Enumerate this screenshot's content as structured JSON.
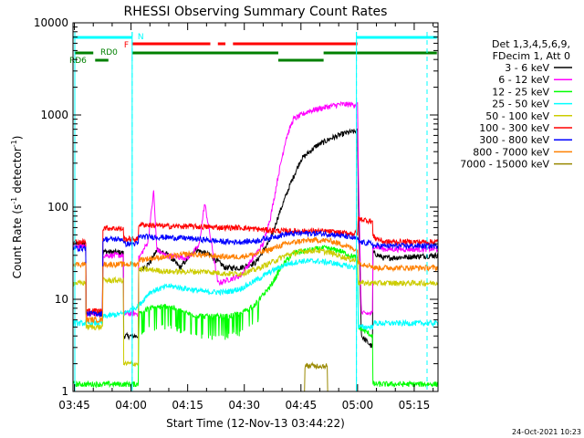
{
  "chart_data": {
    "type": "line",
    "title": "RHESSI Observing Summary Count Rates",
    "xlabel": "Start Time (12-Nov-13 03:44:22)",
    "ylabel_main": "Count Rate (s",
    "ylabel_sup1": "-1",
    "ylabel_mid": " detector",
    "ylabel_sup2": "-1",
    "ylabel_end": ")",
    "y_scale": "log",
    "ylim": [
      1,
      10000
    ],
    "xlim_minutes": [
      -0.37,
      96.3
    ],
    "x_ticks": [
      {
        "t": 0,
        "label": "03:45"
      },
      {
        "t": 15,
        "label": "04:00"
      },
      {
        "t": 30,
        "label": "04:15"
      },
      {
        "t": 45,
        "label": "04:30"
      },
      {
        "t": 60,
        "label": "04:45"
      },
      {
        "t": 75,
        "label": "05:00"
      },
      {
        "t": 90,
        "label": "05:15"
      }
    ],
    "y_ticks": [
      {
        "v": 1,
        "label": "1"
      },
      {
        "v": 10,
        "label": "10"
      },
      {
        "v": 100,
        "label": "100"
      },
      {
        "v": 1000,
        "label": "1000"
      },
      {
        "v": 10000,
        "label": "10000"
      }
    ],
    "legend_header": [
      "Det 1,3,4,5,6,9,",
      "FDecim 1, Att 0"
    ],
    "series": [
      {
        "name": "3 - 6 keV",
        "color": "#000000",
        "points": [
          [
            -0.4,
            40
          ],
          [
            3,
            40
          ],
          [
            3.1,
            7
          ],
          [
            7.5,
            7
          ],
          [
            7.6,
            33
          ],
          [
            13,
            32
          ],
          [
            13.1,
            4
          ],
          [
            17,
            4
          ],
          [
            17.1,
            20
          ],
          [
            20,
            25
          ],
          [
            22,
            35
          ],
          [
            25,
            30
          ],
          [
            28,
            22
          ],
          [
            32,
            35
          ],
          [
            36,
            30
          ],
          [
            40,
            22
          ],
          [
            44,
            22
          ],
          [
            48,
            25
          ],
          [
            52,
            45
          ],
          [
            54,
            80
          ],
          [
            57,
            170
          ],
          [
            60,
            330
          ],
          [
            64,
            460
          ],
          [
            68,
            560
          ],
          [
            72,
            640
          ],
          [
            75,
            670
          ],
          [
            75.2,
            120
          ],
          [
            76,
            4
          ],
          [
            79,
            3
          ],
          [
            79.1,
            32
          ],
          [
            82,
            28
          ],
          [
            96,
            30
          ]
        ]
      },
      {
        "name": "6 - 12 keV",
        "color": "#ff00ff",
        "points": [
          [
            -0.4,
            38
          ],
          [
            3,
            38
          ],
          [
            3.1,
            7
          ],
          [
            7.5,
            7
          ],
          [
            7.6,
            30
          ],
          [
            13,
            30
          ],
          [
            13.1,
            7
          ],
          [
            17,
            7
          ],
          [
            17.1,
            28
          ],
          [
            19.5,
            42
          ],
          [
            21,
            150
          ],
          [
            21.8,
            35
          ],
          [
            24,
            30
          ],
          [
            30,
            28
          ],
          [
            33,
            38
          ],
          [
            34.5,
            110
          ],
          [
            36,
            48
          ],
          [
            38,
            15
          ],
          [
            44,
            18
          ],
          [
            50,
            40
          ],
          [
            52,
            80
          ],
          [
            54,
            220
          ],
          [
            56,
            550
          ],
          [
            58,
            900
          ],
          [
            62,
            1100
          ],
          [
            66,
            1200
          ],
          [
            70,
            1300
          ],
          [
            75,
            1300
          ],
          [
            75.2,
            250
          ],
          [
            76,
            7
          ],
          [
            79,
            7
          ],
          [
            79.1,
            38
          ],
          [
            82,
            35
          ],
          [
            96,
            35
          ]
        ]
      },
      {
        "name": "12 - 25 keV",
        "color": "#00ff00",
        "points": [
          [
            -0.4,
            1.2
          ],
          [
            17,
            1.2
          ],
          [
            17.1,
            7
          ],
          [
            20,
            8
          ],
          [
            25,
            8.5
          ],
          [
            30,
            7
          ],
          [
            35,
            6.5
          ],
          [
            40,
            6.5
          ],
          [
            44,
            7
          ],
          [
            48,
            9
          ],
          [
            52,
            14
          ],
          [
            55,
            23
          ],
          [
            58,
            32
          ],
          [
            62,
            34
          ],
          [
            66,
            36
          ],
          [
            70,
            34
          ],
          [
            73,
            30
          ],
          [
            75,
            28
          ],
          [
            75.2,
            5
          ],
          [
            79,
            4
          ],
          [
            79.1,
            1.2
          ],
          [
            96,
            1.2
          ]
        ]
      },
      {
        "name": "25 - 50 keV",
        "color": "#00ffff",
        "points": [
          [
            -0.4,
            5.5
          ],
          [
            7.5,
            5.5
          ],
          [
            7.6,
            6.5
          ],
          [
            13,
            7
          ],
          [
            17,
            8.5
          ],
          [
            20,
            12
          ],
          [
            25,
            14
          ],
          [
            30,
            13
          ],
          [
            35,
            12
          ],
          [
            40,
            12
          ],
          [
            44,
            13
          ],
          [
            48,
            16
          ],
          [
            52,
            20
          ],
          [
            56,
            24
          ],
          [
            60,
            26
          ],
          [
            64,
            26
          ],
          [
            68,
            25
          ],
          [
            72,
            23
          ],
          [
            75,
            22
          ],
          [
            75.2,
            5
          ],
          [
            79,
            5
          ],
          [
            79.1,
            5.5
          ],
          [
            96,
            5.5
          ]
        ]
      },
      {
        "name": "50 - 100 keV",
        "color": "#cccc00",
        "points": [
          [
            -0.4,
            15
          ],
          [
            3,
            15
          ],
          [
            3.1,
            5
          ],
          [
            7.5,
            5
          ],
          [
            7.6,
            16
          ],
          [
            13,
            16
          ],
          [
            13.1,
            2
          ],
          [
            17,
            2
          ],
          [
            17.1,
            21
          ],
          [
            20,
            21
          ],
          [
            25,
            20
          ],
          [
            30,
            20
          ],
          [
            35,
            20
          ],
          [
            40,
            19
          ],
          [
            44,
            19
          ],
          [
            48,
            21
          ],
          [
            52,
            25
          ],
          [
            56,
            30
          ],
          [
            60,
            33
          ],
          [
            64,
            34
          ],
          [
            68,
            32
          ],
          [
            72,
            28
          ],
          [
            75,
            26
          ],
          [
            75.2,
            15
          ],
          [
            79,
            15
          ],
          [
            79.1,
            15
          ],
          [
            96,
            15
          ]
        ]
      },
      {
        "name": "100 - 300 keV",
        "color": "#ff0000",
        "points": [
          [
            -0.4,
            42
          ],
          [
            3,
            42
          ],
          [
            3.1,
            7.5
          ],
          [
            7.5,
            7.5
          ],
          [
            7.6,
            60
          ],
          [
            13,
            58
          ],
          [
            13.1,
            45
          ],
          [
            17,
            45
          ],
          [
            17.1,
            65
          ],
          [
            25,
            62
          ],
          [
            30,
            62
          ],
          [
            35,
            61
          ],
          [
            40,
            60
          ],
          [
            44,
            60
          ],
          [
            48,
            58
          ],
          [
            52,
            56
          ],
          [
            56,
            55
          ],
          [
            60,
            55
          ],
          [
            64,
            55
          ],
          [
            68,
            54
          ],
          [
            72,
            52
          ],
          [
            75,
            52
          ],
          [
            75.2,
            75
          ],
          [
            79,
            70
          ],
          [
            79.1,
            48
          ],
          [
            82,
            42
          ],
          [
            96,
            42
          ]
        ]
      },
      {
        "name": "300 - 800 keV",
        "color": "#0000ff",
        "points": [
          [
            -0.4,
            36
          ],
          [
            3,
            36
          ],
          [
            3.1,
            7
          ],
          [
            7.5,
            7
          ],
          [
            7.6,
            45
          ],
          [
            13,
            45
          ],
          [
            13.1,
            40
          ],
          [
            17,
            40
          ],
          [
            17.1,
            48
          ],
          [
            25,
            47
          ],
          [
            30,
            46
          ],
          [
            35,
            44
          ],
          [
            40,
            42
          ],
          [
            44,
            42
          ],
          [
            48,
            43
          ],
          [
            52,
            47
          ],
          [
            56,
            51
          ],
          [
            60,
            52
          ],
          [
            64,
            52
          ],
          [
            68,
            51
          ],
          [
            72,
            48
          ],
          [
            75,
            45
          ],
          [
            75.2,
            42
          ],
          [
            79,
            40
          ],
          [
            79.1,
            38
          ],
          [
            96,
            38
          ]
        ]
      },
      {
        "name": "800 - 7000 keV",
        "color": "#ff8000",
        "points": [
          [
            -0.4,
            24
          ],
          [
            3,
            24
          ],
          [
            3.1,
            6
          ],
          [
            7.5,
            6
          ],
          [
            7.6,
            24
          ],
          [
            13,
            24
          ],
          [
            13.1,
            24
          ],
          [
            17,
            24
          ],
          [
            17.1,
            27
          ],
          [
            25,
            29
          ],
          [
            30,
            31
          ],
          [
            35,
            30
          ],
          [
            40,
            29
          ],
          [
            44,
            29
          ],
          [
            48,
            31
          ],
          [
            52,
            35
          ],
          [
            56,
            40
          ],
          [
            60,
            43
          ],
          [
            64,
            44
          ],
          [
            68,
            43
          ],
          [
            72,
            38
          ],
          [
            75,
            34
          ],
          [
            75.2,
            25
          ],
          [
            79,
            23
          ],
          [
            79.1,
            22
          ],
          [
            96,
            22
          ]
        ]
      },
      {
        "name": "7000 - 15000 keV",
        "color": "#998800",
        "points": [
          [
            -0.4,
            1
          ],
          [
            61,
            1
          ],
          [
            61.1,
            1.9
          ],
          [
            67,
            1.9
          ],
          [
            67.1,
            1
          ],
          [
            96,
            1
          ]
        ]
      }
    ],
    "annotations": {
      "N": {
        "label": "N",
        "color": "#00ffff",
        "segments": [
          [
            -0.4,
            15.3
          ],
          [
            74.7,
            96
          ]
        ]
      },
      "F": {
        "label": "F",
        "color": "#ff0000",
        "segments": [
          [
            15.3,
            36
          ],
          [
            38,
            40
          ],
          [
            42,
            75
          ]
        ]
      },
      "RD0": {
        "label": "RD0",
        "color": "#008000",
        "segments": [
          [
            0,
            5
          ],
          [
            15.3,
            54
          ],
          [
            66,
            96
          ]
        ]
      },
      "RD6": {
        "label": "RD6",
        "color": "#008000",
        "segments": [
          [
            5.5,
            9
          ],
          [
            54,
            66
          ]
        ]
      },
      "vlines_solid": [
        15.3,
        74.7
      ],
      "vlines_dashed": [
        15.3,
        74.7,
        93.4
      ]
    },
    "timestamp": "24-Oct-2021 10:23"
  }
}
